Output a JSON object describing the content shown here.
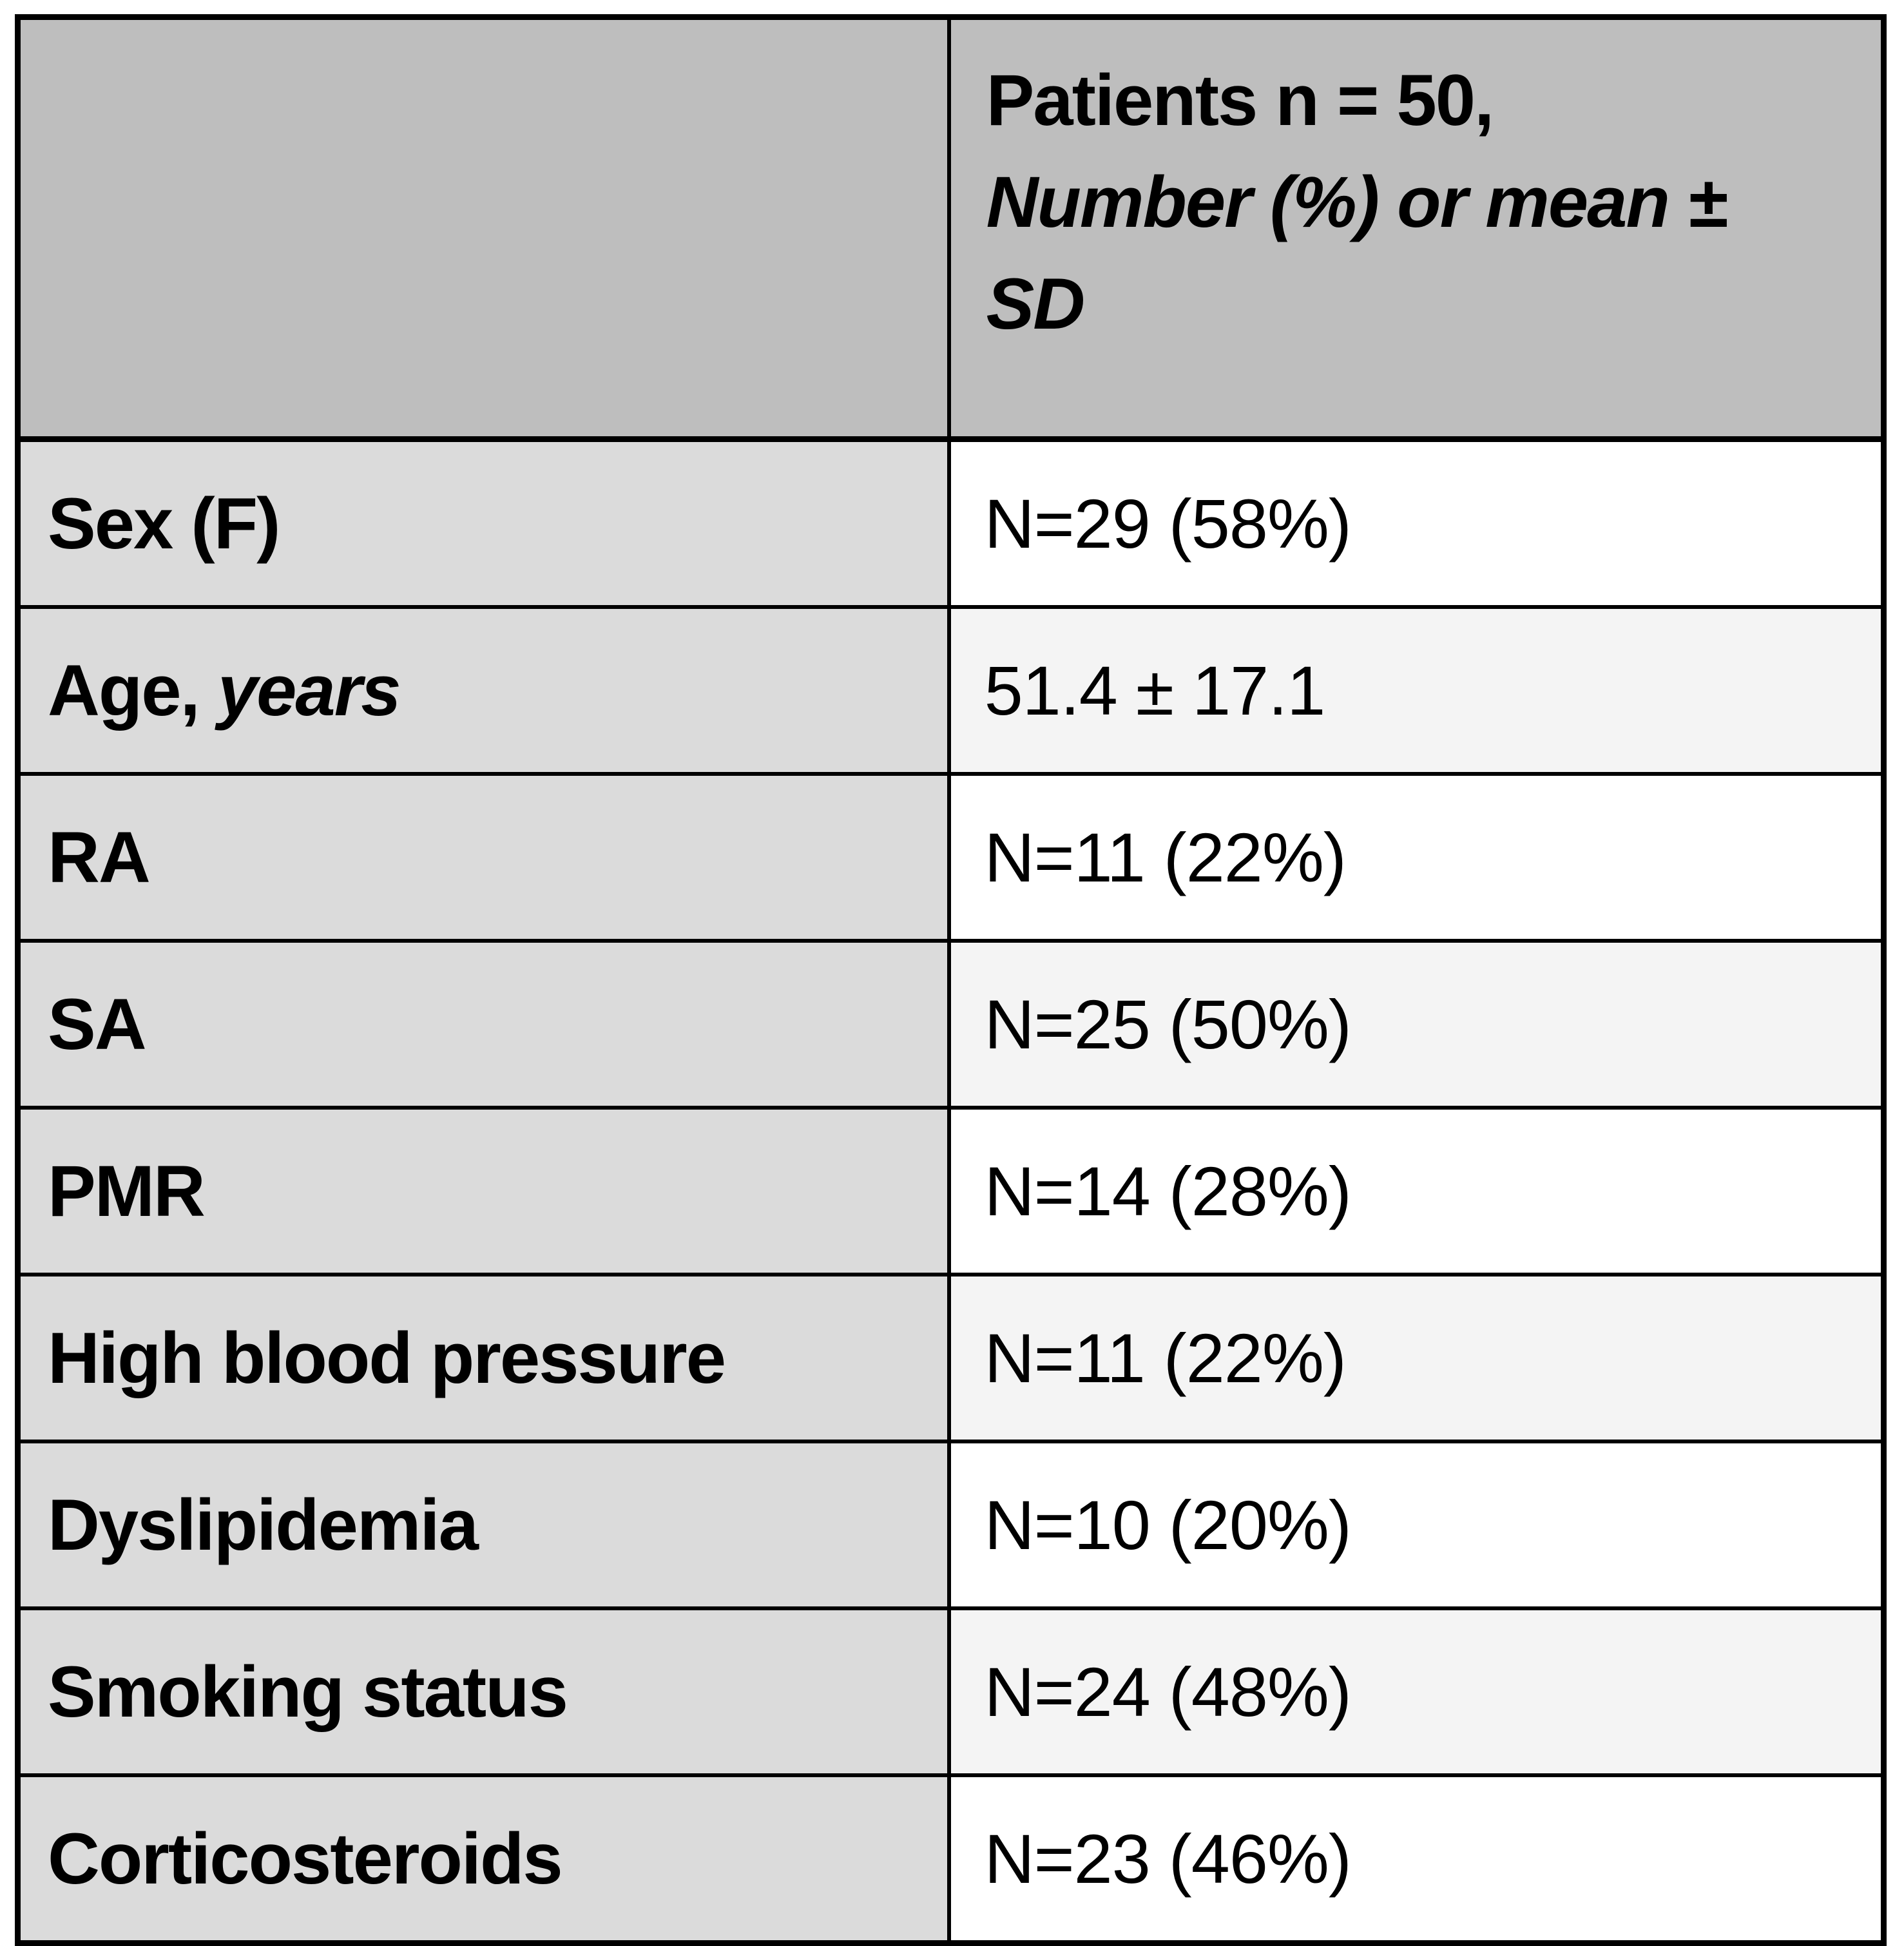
{
  "colors": {
    "page_bg": "#ffffff",
    "header_bg": "#bebebe",
    "label_col_bg": "#dbdbdb",
    "row_odd": "#ffffff",
    "row_even": "#f4f4f4",
    "border": "#000000",
    "text": "#000000"
  },
  "table": {
    "header": {
      "corner_label": "",
      "patients_line1": "Patients n = 50,",
      "patients_line2": "Number (%) or mean ±",
      "patients_line3": "SD"
    },
    "rows": [
      {
        "label_prefix": "Sex (F)",
        "label_italic": "",
        "value": "N=29 (58%)"
      },
      {
        "label_prefix": "Age, ",
        "label_italic": "years",
        "value": "51.4 ± 17.1"
      },
      {
        "label_prefix": "RA",
        "label_italic": "",
        "value": "N=11 (22%)"
      },
      {
        "label_prefix": "SA",
        "label_italic": "",
        "value": "N=25 (50%)"
      },
      {
        "label_prefix": "PMR",
        "label_italic": "",
        "value": "N=14 (28%)"
      },
      {
        "label_prefix": "High blood pressure",
        "label_italic": "",
        "value": "N=11 (22%)"
      },
      {
        "label_prefix": "Dyslipidemia",
        "label_italic": "",
        "value": "N=10 (20%)"
      },
      {
        "label_prefix": "Smoking status",
        "label_italic": "",
        "value": "N=24 (48%)"
      },
      {
        "label_prefix": "Corticosteroids",
        "label_italic": "",
        "value": "N=23 (46%)"
      }
    ]
  }
}
